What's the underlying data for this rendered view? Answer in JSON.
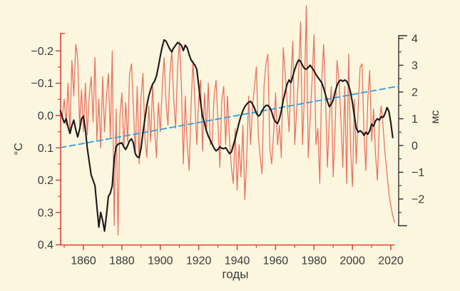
{
  "chart_data": {
    "type": "line",
    "background_color": "#fcf6df",
    "grid": false,
    "legend": "none",
    "x_axis": {
      "label": "годы",
      "color": "#de4233",
      "range": [
        1848,
        2024
      ],
      "major_ticks": [
        1860,
        1880,
        1900,
        1920,
        1940,
        1960,
        1980,
        2000,
        2020
      ],
      "major_tick_labels": [
        "1860",
        "1880",
        "1900",
        "1920",
        "1940",
        "1960",
        "1980",
        "2000",
        "2020"
      ],
      "minor_ticks": [
        1850,
        1870,
        1890,
        1910,
        1930,
        1950,
        1970,
        1990,
        2010
      ]
    },
    "left_axis": {
      "label": "°C",
      "color": "#de4233",
      "inverted": true,
      "range": [
        -0.25,
        0.4
      ],
      "major_ticks": [
        -0.2,
        -0.1,
        0.0,
        0.1,
        0.2,
        0.3,
        0.4
      ],
      "major_tick_labels": [
        "−0.2",
        "−0.1",
        "0.0",
        "0.1",
        "0.2",
        "0.3",
        "0.4"
      ],
      "minor_ticks": [
        -0.15,
        -0.05,
        0.05,
        0.15,
        0.25,
        0.35
      ]
    },
    "right_axis": {
      "label": "мс",
      "color": "#2e2e2e",
      "range": [
        -3.0,
        4.1
      ],
      "major_ticks": [
        4,
        3,
        2,
        1,
        0,
        -1,
        -2
      ],
      "major_tick_labels": [
        "4",
        "3",
        "2",
        "1",
        "0",
        "−1",
        "−2"
      ],
      "minor_ticks": [
        3.5,
        2.5,
        1.5,
        0.5,
        -0.5,
        -1.5,
        -2.5
      ]
    },
    "series": [
      {
        "id": "red_annual",
        "description": "thin noisy annual line, left °C axis (inverted)",
        "color": "#ea6f5c",
        "width": 1.25,
        "axis": "left",
        "start_year": 1849,
        "values": [
          0.0,
          -0.05,
          0.03,
          -0.1,
          0.05,
          -0.17,
          -0.06,
          -0.22,
          -0.18,
          0.03,
          -0.08,
          0.05,
          -0.1,
          0.06,
          -0.06,
          -0.12,
          0.02,
          -0.18,
          0.08,
          -0.05,
          0.1,
          -0.12,
          0.05,
          -0.06,
          -0.13,
          0.07,
          -0.2,
          0.34,
          -0.02,
          0.37,
          0.0,
          -0.07,
          0.1,
          -0.04,
          0.08,
          -0.13,
          -0.16,
          -0.03,
          0.12,
          -0.09,
          0.15,
          -0.06,
          -0.13,
          0.07,
          0.13,
          -0.03,
          0.08,
          -0.1,
          0.04,
          0.13,
          -0.04,
          0.05,
          -0.09,
          -0.18,
          -0.04,
          0.03,
          -0.13,
          -0.2,
          -0.05,
          0.04,
          -0.15,
          -0.23,
          -0.09,
          0.15,
          -0.06,
          0.09,
          0.17,
          -0.03,
          -0.17,
          -0.04,
          0.09,
          -0.05,
          -0.11,
          0.11,
          -0.07,
          0.05,
          -0.1,
          0.09,
          0.08,
          -0.06,
          -0.11,
          0.02,
          0.16,
          -0.05,
          -0.09,
          0.09,
          -0.06,
          0.07,
          0.16,
          0.21,
          0.04,
          0.23,
          0.09,
          0.19,
          0.03,
          0.26,
          0.13,
          -0.06,
          0.09,
          -0.03,
          -0.09,
          -0.15,
          0.06,
          0.13,
          0.18,
          -0.09,
          -0.16,
          -0.19,
          0.1,
          0.15,
          0.05,
          -0.07,
          0.09,
          0.03,
          0.13,
          -0.21,
          -0.13,
          -0.04,
          0.05,
          -0.12,
          -0.23,
          0.09,
          -0.02,
          -0.13,
          -0.29,
          0.09,
          -0.06,
          -0.34,
          0.13,
          0.01,
          -0.11,
          -0.25,
          0.09,
          0.04,
          0.21,
          -0.11,
          -0.22,
          -0.06,
          0.16,
          0.01,
          -0.09,
          0.19,
          0.04,
          -0.17,
          -0.11,
          0.01,
          0.16,
          -0.09,
          0.21,
          -0.19,
          0.1,
          0.22,
          -0.05,
          0.15,
          -0.02,
          -0.15,
          -0.16,
          0.05,
          0.17,
          -0.05,
          -0.14,
          0.08,
          -0.02,
          0.12,
          0.2,
          0.02,
          -0.03,
          0.04,
          0.12,
          0.18,
          0.24,
          0.28,
          0.31,
          0.33
        ]
      },
      {
        "id": "black_smoothed",
        "description": "thick smoothed line, right мс axis",
        "color": "#191919",
        "width": 2.1,
        "axis": "right",
        "start_year": 1848,
        "values": [
          1.3,
          1.05,
          0.85,
          1.0,
          0.7,
          0.45,
          0.75,
          0.95,
          0.6,
          0.32,
          0.6,
          1.0,
          1.1,
          0.6,
          -0.1,
          -0.6,
          -1.1,
          -1.3,
          -1.5,
          -2.3,
          -3.05,
          -2.5,
          -2.8,
          -3.2,
          -2.6,
          -1.9,
          -1.78,
          -1.5,
          -0.5,
          -0.05,
          0.05,
          0.08,
          0.1,
          -0.05,
          -0.15,
          0.0,
          0.18,
          0.25,
          0.1,
          -0.3,
          -0.42,
          -0.45,
          -0.1,
          0.5,
          1.0,
          1.5,
          1.85,
          2.1,
          2.3,
          2.4,
          2.6,
          2.95,
          3.35,
          3.7,
          3.95,
          3.9,
          3.75,
          3.6,
          3.5,
          3.65,
          3.75,
          3.85,
          3.8,
          3.75,
          3.55,
          3.75,
          3.65,
          3.4,
          3.2,
          3.1,
          3.0,
          2.85,
          2.25,
          1.6,
          1.1,
          0.85,
          0.55,
          0.35,
          0.2,
          0.05,
          -0.1,
          -0.2,
          -0.15,
          -0.05,
          -0.1,
          -0.12,
          -0.08,
          -0.18,
          -0.3,
          -0.25,
          0.0,
          0.25,
          0.55,
          0.85,
          1.1,
          1.3,
          1.45,
          1.55,
          1.62,
          1.65,
          1.55,
          1.4,
          1.2,
          1.1,
          1.15,
          1.3,
          1.42,
          1.5,
          1.5,
          1.42,
          1.25,
          1.02,
          0.88,
          0.82,
          1.0,
          1.3,
          1.7,
          2.0,
          2.3,
          2.45,
          2.35,
          2.6,
          2.85,
          3.05,
          3.2,
          3.15,
          3.0,
          2.88,
          2.85,
          2.92,
          3.0,
          2.9,
          2.8,
          2.65,
          2.55,
          2.45,
          2.35,
          2.15,
          1.9,
          1.65,
          1.45,
          1.55,
          1.7,
          2.0,
          2.25,
          2.4,
          2.45,
          2.4,
          2.45,
          2.4,
          2.25,
          2.0,
          1.6,
          1.1,
          0.65,
          0.5,
          0.55,
          0.5,
          0.38,
          0.5,
          0.42,
          0.55,
          0.8,
          0.72,
          0.92,
          1.0,
          0.95,
          1.08,
          1.05,
          1.2,
          1.42,
          1.28,
          0.85,
          0.3
        ]
      }
    ],
    "trend": {
      "id": "blue_dashed_trend",
      "description": "straight dashed trend line, right мс axis",
      "color": "#38a2da",
      "width": 1.9,
      "dash": "8 5",
      "axis": "right",
      "points": [
        {
          "year": 1848,
          "value": -0.08
        },
        {
          "year": 2024,
          "value": 2.22
        }
      ]
    }
  }
}
